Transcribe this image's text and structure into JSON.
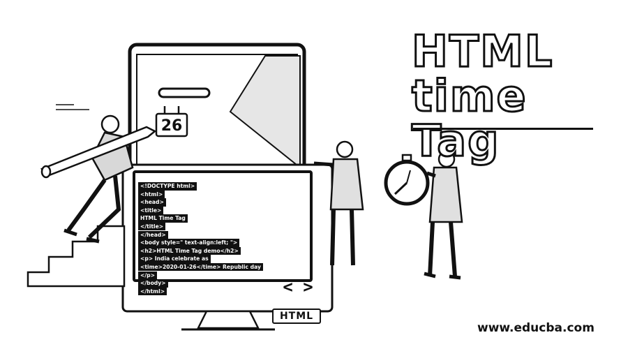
{
  "title": {
    "line1": "HTML",
    "line2": "time Tag"
  },
  "code_lines": [
    "<!DOCTYPE html>",
    "<html>",
    "<head>",
    "<title>",
    "HTML Time Tag",
    "</title>",
    "</head>",
    "<body style=\" text-align:left; \">",
    "<h2>HTML Time Tag demo</h2>",
    "<p> India celebrate as",
    "<time>2020-01-26</time> Republic day",
    "</p>",
    "</body>",
    "</html>"
  ],
  "calendar_number": "26",
  "brackets_glyph": "< >",
  "badge_text": "HTML",
  "site_url": "www.educba.com",
  "colors": {
    "ink": "#111111",
    "paper": "#ffffff"
  }
}
